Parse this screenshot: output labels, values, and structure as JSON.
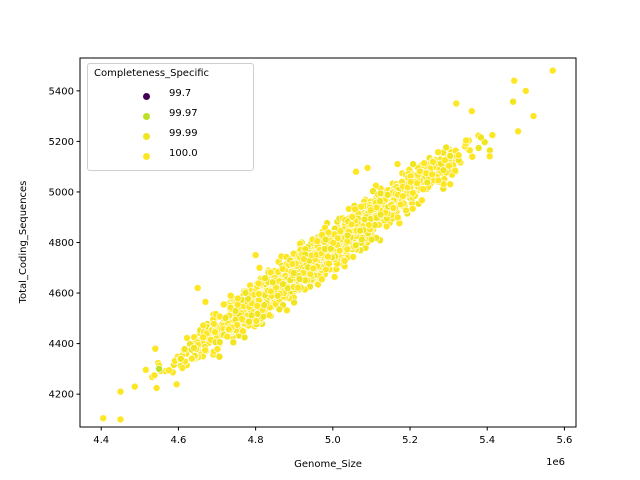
{
  "chart_data": {
    "type": "scatter",
    "title": "",
    "xlabel": "Genome_Size",
    "ylabel": "Total_Coding_Sequences",
    "x_offset_label": "1e6",
    "xlim": [
      4.345,
      5.63
    ],
    "ylim": [
      4070,
      5530
    ],
    "x_ticks": [
      4.4,
      4.6,
      4.8,
      5.0,
      5.2,
      5.4,
      5.6
    ],
    "x_tick_labels": [
      "4.4",
      "4.6",
      "4.8",
      "5.0",
      "5.2",
      "5.4",
      "5.6"
    ],
    "y_ticks": [
      4200,
      4400,
      4600,
      4800,
      5000,
      5200,
      5400
    ],
    "y_tick_labels": [
      "4200",
      "4400",
      "4600",
      "4800",
      "5000",
      "5200",
      "5400"
    ],
    "grid": false,
    "legend": {
      "title": "Completeness_Specific",
      "position": "upper left",
      "entries": [
        {
          "label": "99.7",
          "color": "#440154"
        },
        {
          "label": "99.97",
          "color": "#bddf26"
        },
        {
          "label": "99.99",
          "color": "#f0e51f"
        },
        {
          "label": "100.0",
          "color": "#fde725"
        }
      ]
    },
    "hue": "Completeness_Specific",
    "trend": {
      "x_start": 4.42,
      "y_start": 4130,
      "x_end": 5.52,
      "y_end": 5370,
      "spread_y": 55,
      "n_points": 2200
    },
    "notable_points": [
      {
        "x": 4.405,
        "y": 4105,
        "hue": "100.0"
      },
      {
        "x": 4.45,
        "y": 4210,
        "hue": "100.0"
      },
      {
        "x": 4.45,
        "y": 4100,
        "hue": "100.0"
      },
      {
        "x": 4.55,
        "y": 4300,
        "hue": "99.97"
      },
      {
        "x": 4.54,
        "y": 4380,
        "hue": "100.0"
      },
      {
        "x": 4.65,
        "y": 4620,
        "hue": "100.0"
      },
      {
        "x": 4.67,
        "y": 4565,
        "hue": "100.0"
      },
      {
        "x": 4.8,
        "y": 4750,
        "hue": "100.0"
      },
      {
        "x": 4.81,
        "y": 4700,
        "hue": "100.0"
      },
      {
        "x": 5.06,
        "y": 5080,
        "hue": "100.0"
      },
      {
        "x": 5.09,
        "y": 5095,
        "hue": "100.0"
      },
      {
        "x": 5.32,
        "y": 5350,
        "hue": "100.0"
      },
      {
        "x": 5.36,
        "y": 5320,
        "hue": "100.0"
      },
      {
        "x": 5.47,
        "y": 5440,
        "hue": "100.0"
      },
      {
        "x": 5.5,
        "y": 5400,
        "hue": "100.0"
      },
      {
        "x": 5.52,
        "y": 5300,
        "hue": "100.0"
      },
      {
        "x": 5.57,
        "y": 5480,
        "hue": "100.0"
      },
      {
        "x": 5.48,
        "y": 5240,
        "hue": "100.0"
      }
    ],
    "marker_size_px": 7,
    "marker_edge_color": "#ffffff"
  }
}
